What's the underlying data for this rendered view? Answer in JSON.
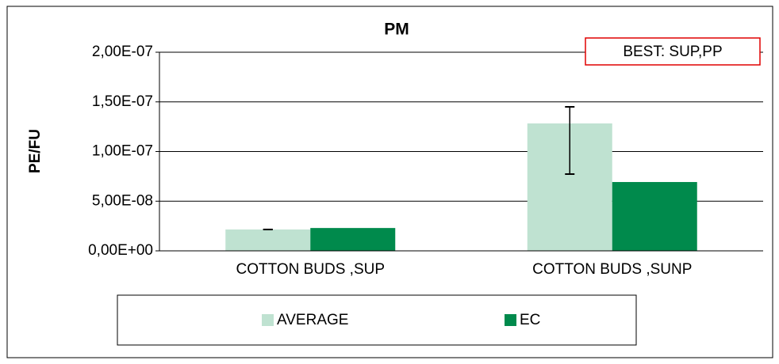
{
  "chart_data": {
    "type": "bar",
    "title": "PM",
    "ylabel": "PE/FU",
    "categories": [
      "COTTON BUDS ,SUP",
      "COTTON BUDS ,SUNP"
    ],
    "series": [
      {
        "name": "AVERAGE",
        "color": "#bfe2d1",
        "values": [
          2.15e-08,
          1.283e-07
        ],
        "error_minus": [
          0,
          5.1e-08
        ],
        "error_plus": [
          0,
          1.67e-08
        ]
      },
      {
        "name": "EC",
        "color": "#008a4c",
        "values": [
          2.3e-08,
          6.93e-08
        ]
      }
    ],
    "ylim": [
      0,
      2e-07
    ],
    "yticks": [
      {
        "value": 0,
        "label": "0,00E+00"
      },
      {
        "value": 5e-08,
        "label": "5,00E-08"
      },
      {
        "value": 1e-07,
        "label": "1,00E-07"
      },
      {
        "value": 1.5e-07,
        "label": "1,50E-07"
      },
      {
        "value": 2e-07,
        "label": "2,00E-07"
      }
    ],
    "grid": true,
    "legend": "bottom",
    "annotation": "BEST: SUP,PP"
  }
}
